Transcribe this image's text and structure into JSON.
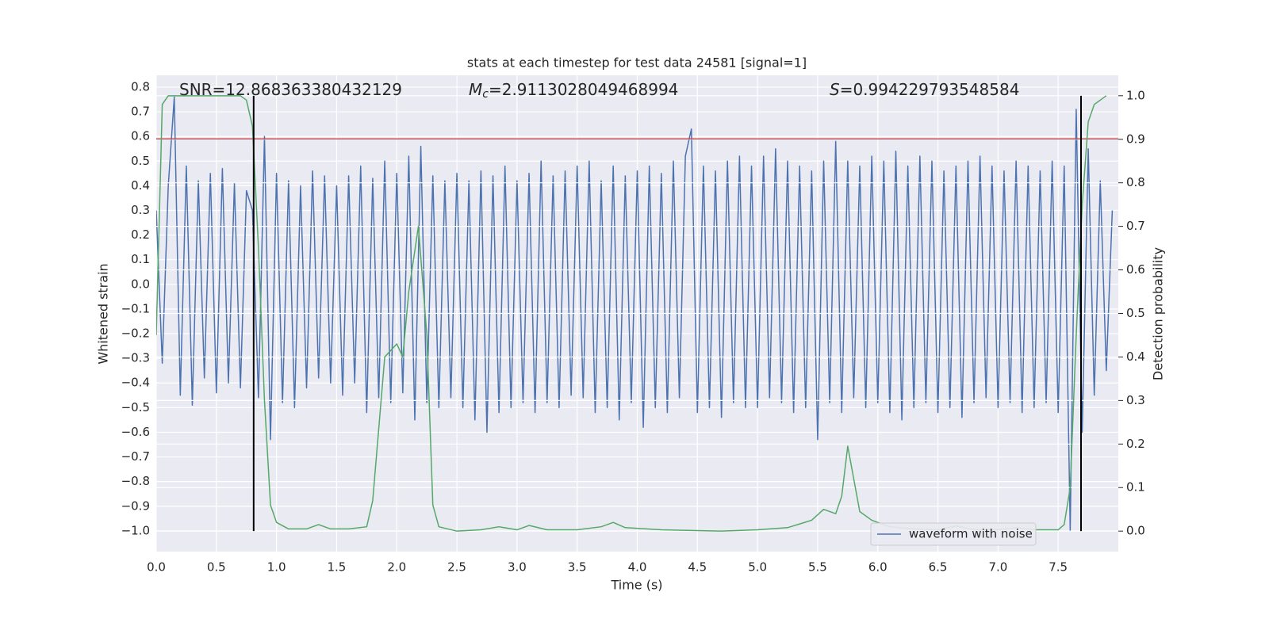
{
  "chart_data": {
    "type": "line",
    "title": "stats at each timestep for test data 24581 [signal=1]",
    "xlabel": "Time (s)",
    "ylabel": "Whitened strain",
    "y2label": "Detection probability",
    "annotations": [
      {
        "text": "SNR=12.868363380432129"
      },
      {
        "italic": "M",
        "sub": "c",
        "text": "=2.9113028049468994"
      },
      {
        "italic": "S",
        "text": "=0.994229793548584"
      }
    ],
    "xlim": [
      0,
      8
    ],
    "ylim": [
      -1.084,
      0.848
    ],
    "y2lim": [
      -0.047,
      1.047
    ],
    "xticks": [
      {
        "value": 0,
        "label": "0.0"
      },
      0.5,
      {
        "value": 1,
        "label": "1.0"
      },
      1.5,
      {
        "value": 2,
        "label": "2.0"
      },
      2.5,
      {
        "value": 3,
        "label": "3.0"
      },
      3.5,
      {
        "value": 4,
        "label": "4.0"
      },
      4.5,
      {
        "value": 5,
        "label": "5.0"
      },
      5.5,
      {
        "value": 6,
        "label": "6.0"
      },
      6.5,
      {
        "value": 7,
        "label": "7.0"
      },
      7.5
    ],
    "yticks": [
      {
        "value": -1,
        "label": "−1.0"
      },
      {
        "value": -0.9,
        "label": "−0.9"
      },
      {
        "value": -0.8,
        "label": "−0.8"
      },
      {
        "value": -0.7,
        "label": "−0.7"
      },
      {
        "value": -0.6,
        "label": "−0.6"
      },
      {
        "value": -0.5,
        "label": "−0.5"
      },
      {
        "value": -0.4,
        "label": "−0.4"
      },
      {
        "value": -0.3,
        "label": "−0.3"
      },
      {
        "value": -0.2,
        "label": "−0.2"
      },
      {
        "value": -0.1,
        "label": "−0.1"
      },
      {
        "value": 0,
        "label": "0.0"
      },
      0.1,
      0.2,
      0.3,
      0.4,
      0.5,
      0.6,
      0.7,
      0.8
    ],
    "y2ticks": [
      {
        "value": 0,
        "label": "0.0"
      },
      0.1,
      0.2,
      0.3,
      0.4,
      0.5,
      0.6,
      0.7,
      0.8,
      0.9,
      {
        "value": 1,
        "label": "1.0"
      }
    ],
    "grid": true,
    "legend": "lower right",
    "series": [
      {
        "name": "waveform with noise",
        "color": "#4c72b0",
        "x": [
          0,
          0.05,
          0.1,
          0.15,
          0.2,
          0.25,
          0.3,
          0.35,
          0.4,
          0.45,
          0.5,
          0.55,
          0.6,
          0.65,
          0.7,
          0.75,
          0.8,
          0.85,
          0.9,
          0.95,
          1,
          1.05,
          1.1,
          1.15,
          1.2,
          1.25,
          1.3,
          1.35,
          1.4,
          1.45,
          1.5,
          1.55,
          1.6,
          1.65,
          1.7,
          1.75,
          1.8,
          1.85,
          1.9,
          1.95,
          2,
          2.05,
          2.1,
          2.15,
          2.2,
          2.25,
          2.3,
          2.35,
          2.4,
          2.45,
          2.5,
          2.55,
          2.6,
          2.65,
          2.7,
          2.75,
          2.8,
          2.85,
          2.9,
          2.95,
          3,
          3.05,
          3.1,
          3.15,
          3.2,
          3.25,
          3.3,
          3.35,
          3.4,
          3.45,
          3.5,
          3.55,
          3.6,
          3.65,
          3.7,
          3.75,
          3.8,
          3.85,
          3.9,
          3.95,
          4,
          4.05,
          4.1,
          4.15,
          4.2,
          4.25,
          4.3,
          4.35,
          4.4,
          4.45,
          4.5,
          4.55,
          4.6,
          4.65,
          4.7,
          4.75,
          4.8,
          4.85,
          4.9,
          4.95,
          5,
          5.05,
          5.1,
          5.15,
          5.2,
          5.25,
          5.3,
          5.35,
          5.4,
          5.45,
          5.5,
          5.55,
          5.6,
          5.65,
          5.7,
          5.75,
          5.8,
          5.85,
          5.9,
          5.95,
          6,
          6.05,
          6.1,
          6.15,
          6.2,
          6.25,
          6.3,
          6.35,
          6.4,
          6.45,
          6.5,
          6.55,
          6.6,
          6.65,
          6.7,
          6.75,
          6.8,
          6.85,
          6.9,
          6.95,
          7,
          7.05,
          7.1,
          7.15,
          7.2,
          7.25,
          7.3,
          7.35,
          7.4,
          7.45,
          7.5,
          7.55,
          7.6,
          7.65,
          7.7,
          7.75,
          7.8,
          7.85,
          7.9,
          7.95
        ],
        "values": [
          0.3,
          -0.32,
          0.4,
          0.76,
          -0.45,
          0.48,
          -0.49,
          0.42,
          -0.38,
          0.45,
          -0.44,
          0.47,
          -0.4,
          0.41,
          -0.42,
          0.38,
          0.3,
          -0.46,
          0.6,
          -0.63,
          0.45,
          -0.48,
          0.42,
          -0.5,
          0.4,
          -0.42,
          0.46,
          -0.38,
          0.44,
          -0.4,
          0.4,
          -0.45,
          0.44,
          -0.4,
          0.48,
          -0.52,
          0.43,
          -0.46,
          0.5,
          -0.48,
          0.45,
          -0.44,
          0.52,
          -0.55,
          0.56,
          -0.48,
          0.44,
          -0.5,
          0.42,
          -0.46,
          0.45,
          -0.5,
          0.42,
          -0.55,
          0.46,
          -0.6,
          0.44,
          -0.52,
          0.48,
          -0.5,
          0.42,
          -0.48,
          0.45,
          -0.52,
          0.5,
          -0.48,
          0.44,
          -0.5,
          0.46,
          -0.45,
          0.48,
          -0.46,
          0.5,
          -0.52,
          0.42,
          -0.5,
          0.48,
          -0.55,
          0.44,
          -0.48,
          0.46,
          -0.58,
          0.48,
          -0.5,
          0.45,
          -0.52,
          0.5,
          -0.46,
          0.52,
          0.63,
          -0.52,
          0.48,
          -0.5,
          0.46,
          -0.54,
          0.5,
          -0.48,
          0.52,
          -0.5,
          0.48,
          -0.5,
          0.52,
          -0.46,
          0.55,
          -0.48,
          0.5,
          -0.52,
          0.48,
          -0.5,
          0.46,
          -0.63,
          0.5,
          -0.48,
          0.58,
          -0.52,
          0.5,
          -0.46,
          0.48,
          -0.5,
          0.52,
          -0.48,
          0.5,
          -0.52,
          0.54,
          -0.55,
          0.48,
          -0.5,
          0.52,
          -0.48,
          0.5,
          -0.52,
          0.46,
          -0.5,
          0.48,
          -0.54,
          0.5,
          -0.48,
          0.52,
          -0.46,
          0.48,
          -0.5,
          0.46,
          -0.48,
          0.5,
          -0.52,
          0.48,
          -0.5,
          0.46,
          -0.48,
          0.5,
          -0.52,
          0.48,
          -1.0,
          0.71,
          -0.6,
          0.55,
          -0.45,
          0.42,
          -0.35,
          0.3
        ]
      },
      {
        "color": "#55a868",
        "axis": "y2",
        "x": [
          0,
          0.05,
          0.1,
          0.7,
          0.75,
          0.8,
          0.85,
          0.9,
          0.95,
          1.0,
          1.1,
          1.25,
          1.35,
          1.45,
          1.6,
          1.75,
          1.8,
          1.9,
          2.0,
          2.05,
          2.1,
          2.18,
          2.25,
          2.3,
          2.35,
          2.5,
          2.7,
          2.85,
          3.0,
          3.1,
          3.25,
          3.5,
          3.7,
          3.8,
          3.9,
          4.2,
          4.7,
          5.0,
          5.25,
          5.45,
          5.55,
          5.65,
          5.7,
          5.75,
          5.8,
          5.85,
          5.95,
          6.1,
          6.3,
          6.5,
          6.65,
          6.8,
          7.0,
          7.15,
          7.3,
          7.5,
          7.55,
          7.6,
          7.65,
          7.7,
          7.75,
          7.8,
          7.85,
          7.9
        ],
        "values": [
          0.45,
          0.98,
          1.0,
          1.0,
          0.99,
          0.93,
          0.65,
          0.3,
          0.06,
          0.02,
          0.005,
          0.005,
          0.015,
          0.005,
          0.005,
          0.01,
          0.07,
          0.4,
          0.43,
          0.4,
          0.55,
          0.7,
          0.45,
          0.06,
          0.01,
          0.0,
          0.003,
          0.01,
          0.003,
          0.013,
          0.003,
          0.003,
          0.01,
          0.02,
          0.008,
          0.003,
          0.0,
          0.003,
          0.008,
          0.025,
          0.05,
          0.04,
          0.08,
          0.195,
          0.12,
          0.045,
          0.025,
          0.01,
          0.005,
          0.003,
          0.012,
          0.003,
          0.003,
          0.008,
          0.003,
          0.003,
          0.015,
          0.1,
          0.45,
          0.75,
          0.94,
          0.98,
          0.99,
          1.0
        ]
      }
    ],
    "hlines": [
      {
        "y": 0.59,
        "color": "#c44e52"
      }
    ],
    "vlines": [
      {
        "x": 0.81,
        "y2min": 0,
        "y2max": 1,
        "color": "#000000"
      },
      {
        "x": 7.69,
        "y2min": 0,
        "y2max": 1,
        "color": "#000000"
      }
    ]
  }
}
